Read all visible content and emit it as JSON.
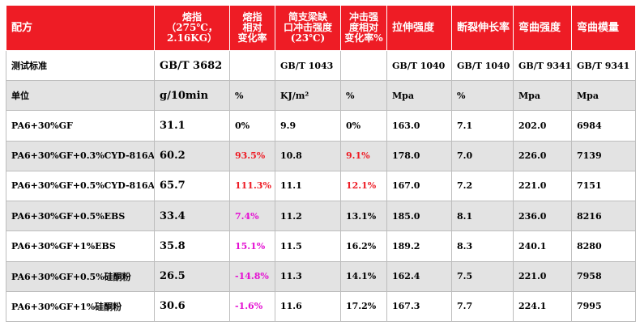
{
  "columns": [
    "配方",
    "熔指（275℃，2.16KG）",
    "熔指相对变化率",
    "简支梁缺口冲击强度(23℃)",
    "冲击强度相对变化率%",
    "拉伸强度",
    "断裂伸长率",
    "弯曲强度",
    "弯曲模量"
  ],
  "header_lines": {
    "c1": [
      "熔指",
      "（275℃，",
      "2.16KG）"
    ],
    "c2": [
      "熔指",
      "相对",
      "变化率"
    ],
    "c3": [
      "简支梁缺",
      "口冲击强度",
      "(23℃)"
    ],
    "c4": [
      "冲击强",
      "度相对",
      "变化率%"
    ]
  },
  "rows": [
    {
      "formula": "测试标准",
      "mfi": "GB/T 3682",
      "mfi_change": "",
      "impact": "GB/T 1043",
      "impact_change": "",
      "tensile": "GB/T 1040",
      "elongation": "GB/T 1040",
      "flex_strength": "GB/T 9341",
      "flex_modulus": "GB/T 9341"
    },
    {
      "formula": "单位",
      "mfi": "g/10min",
      "mfi_change": "%",
      "impact": "KJ/m²",
      "impact_change": "%",
      "tensile": "Mpa",
      "elongation": "%",
      "flex_strength": "Mpa",
      "flex_modulus": "Mpa"
    },
    {
      "formula": "PA6+30%GF",
      "mfi": "31.1",
      "mfi_change": "0%",
      "impact": "9.9",
      "impact_change": "0%",
      "tensile": "163.0",
      "elongation": "7.1",
      "flex_strength": "202.0",
      "flex_modulus": "6984"
    },
    {
      "formula": "PA6+30%GF+0.3%CYD-816A",
      "mfi": "60.2",
      "mfi_change": "93.5%",
      "impact": "10.8",
      "impact_change": "9.1%",
      "tensile": "178.0",
      "elongation": "7.0",
      "flex_strength": "226.0",
      "flex_modulus": "7139"
    },
    {
      "formula": "PA6+30%GF+0.5%CYD-816A",
      "mfi": "65.7",
      "mfi_change": "111.3%",
      "impact": "11.1",
      "impact_change": "12.1%",
      "tensile": "167.0",
      "elongation": "7.2",
      "flex_strength": "221.0",
      "flex_modulus": "7151"
    },
    {
      "formula": "PA6+30%GF+0.5%EBS",
      "mfi": "33.4",
      "mfi_change": "7.4%",
      "impact": "11.2",
      "impact_change": "13.1%",
      "tensile": "185.0",
      "elongation": "8.1",
      "flex_strength": "236.0",
      "flex_modulus": "8216"
    },
    {
      "formula": "PA6+30%GF+1%EBS",
      "mfi": "35.8",
      "mfi_change": "15.1%",
      "impact": "11.5",
      "impact_change": "16.2%",
      "tensile": "189.2",
      "elongation": "8.3",
      "flex_strength": "240.1",
      "flex_modulus": "8280"
    },
    {
      "formula": "PA6+30%GF+0.5%硅酮粉",
      "mfi": "26.5",
      "mfi_change": "-14.8%",
      "impact": "11.3",
      "impact_change": "14.1%",
      "tensile": "162.4",
      "elongation": "7.5",
      "flex_strength": "221.0",
      "flex_modulus": "7958"
    },
    {
      "formula": "PA6+30%GF+1%硅酮粉",
      "mfi": "30.6",
      "mfi_change": "-1.6%",
      "impact": "11.6",
      "impact_change": "17.2%",
      "tensile": "167.3",
      "elongation": "7.7",
      "flex_strength": "224.1",
      "flex_modulus": "7995"
    }
  ],
  "colors": {
    "header_bg": "#ee1c25",
    "highlight_red": "#ee1c25",
    "highlight_magenta": "#e40fd2",
    "band_gray": "#e3e3e3"
  }
}
